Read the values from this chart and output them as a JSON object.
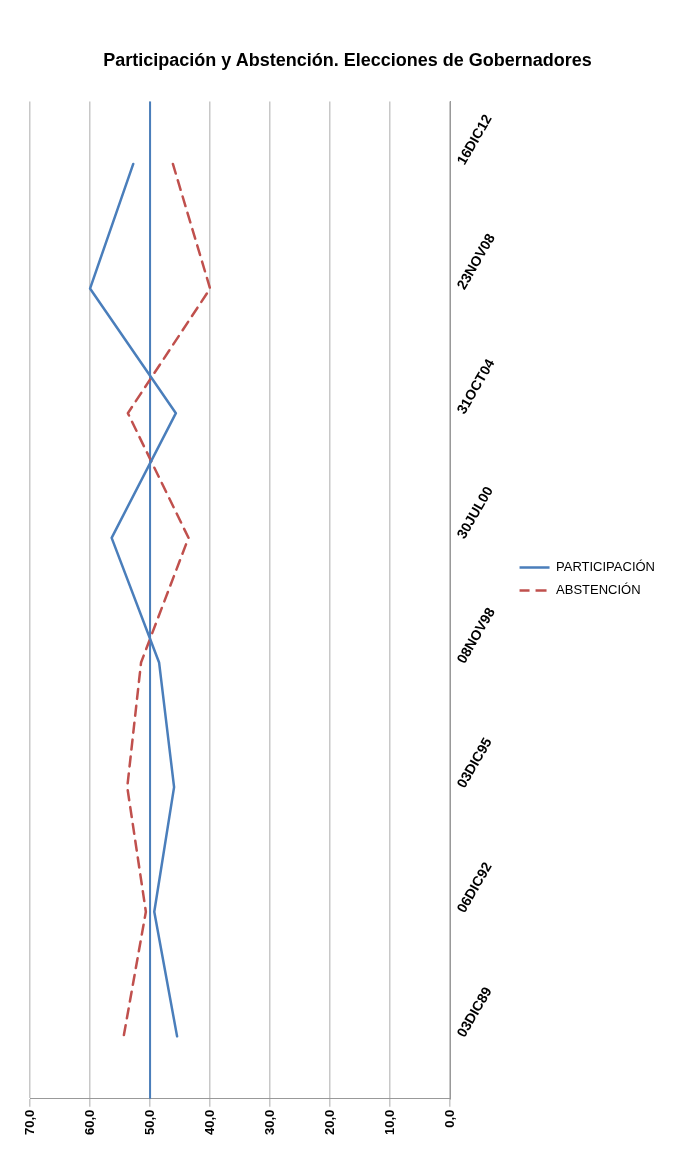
{
  "chart_data": {
    "type": "line",
    "title": "Participación y Abstención. Elecciones de Gobernadores",
    "orientation": "horizontal",
    "categories": [
      "16DIC12",
      "23NOV08",
      "31OCT04",
      "30JUL00",
      "08NOV98",
      "03DIC95",
      "06DIC92",
      "03DIC89"
    ],
    "series": [
      {
        "name": "PARTICIPACIÓN",
        "color": "#4a7ebb",
        "line_style": "solid",
        "values": [
          52.8,
          60.0,
          45.7,
          56.4,
          48.5,
          46.0,
          49.3,
          45.5
        ]
      },
      {
        "name": "ABSTENCIÓN",
        "color": "#c0504d",
        "line_style": "dashed",
        "values": [
          46.2,
          40.0,
          53.7,
          43.6,
          51.5,
          53.8,
          50.7,
          54.4
        ]
      }
    ],
    "xlim": [
      70,
      0
    ],
    "xticks": [
      {
        "value": 70,
        "label": "70,0"
      },
      {
        "value": 60,
        "label": "60,0"
      },
      {
        "value": 50,
        "label": "50,0"
      },
      {
        "value": 40,
        "label": "40,0"
      },
      {
        "value": 30,
        "label": "30,0"
      },
      {
        "value": 20,
        "label": "20,0"
      },
      {
        "value": 10,
        "label": "10,0"
      },
      {
        "value": 0,
        "label": "0,0"
      }
    ],
    "ref_lines": [
      {
        "axis": "x",
        "value": 50,
        "color": "#4a7ebb"
      }
    ],
    "grid": "x",
    "legend": "right",
    "marker": "none"
  }
}
